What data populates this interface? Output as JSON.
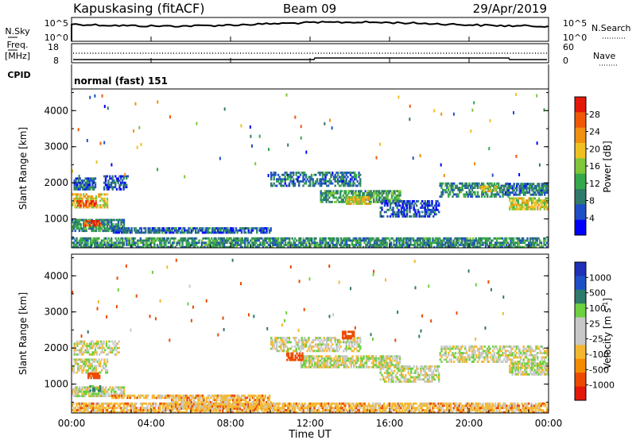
{
  "header": {
    "site": "Kapuskasing (fitACF)",
    "beam": "Beam 09",
    "date": "29/Apr/2019"
  },
  "strip_noise": {
    "left_label": "N.Sky",
    "right_label": "N.Search",
    "left_ticks": [
      "10^5",
      "10^0"
    ],
    "right_ticks": [
      "10^5",
      "10^0"
    ]
  },
  "strip_freq": {
    "left_label_top": "Freq.",
    "left_label_unit": "[MHz]",
    "left_ticks": [
      "18",
      "8"
    ],
    "right_label": "Nave",
    "right_ticks": [
      "60",
      "0"
    ]
  },
  "strip_cpid": {
    "label": "CPID",
    "mode_text": "normal (fast) 151"
  },
  "x_axis": {
    "ticks": [
      "00:00",
      "04:00",
      "08:00",
      "12:00",
      "16:00",
      "20:00",
      "00:00"
    ],
    "label": "Time UT",
    "range_hours": [
      0,
      24
    ]
  },
  "colors": {
    "power": [
      "#0000ff",
      "#1f4fc8",
      "#2f7a6a",
      "#34a84a",
      "#7fc63a",
      "#f0c020",
      "#f09010",
      "#f05808",
      "#e41808"
    ],
    "velocity": [
      "#e41808",
      "#ec4a00",
      "#f48a00",
      "#f4b830",
      "#c8c8c8",
      "#c8c8c8",
      "#6cd040",
      "#2f7a6a",
      "#1f4fc8",
      "#2030b8"
    ]
  },
  "chart_data": [
    {
      "type": "heatmap",
      "title": "",
      "xlabel": "",
      "ylabel": "Slant Range [km]",
      "xlim": [
        0,
        24
      ],
      "ylim": [
        200,
        4600
      ],
      "y_ticks": [
        "1000",
        "2000",
        "3000",
        "4000"
      ],
      "colorbar": {
        "label": "Power [dB]",
        "range": [
          0,
          32
        ],
        "ticks": [
          "4",
          "8",
          "12",
          "16",
          "20",
          "24",
          "28"
        ]
      },
      "regions": [
        {
          "t": [
            0.0,
            1.8
          ],
          "r": [
            1350,
            1750
          ],
          "value": 20
        },
        {
          "t": [
            0.2,
            1.2
          ],
          "r": [
            1400,
            1550
          ],
          "value": 27
        },
        {
          "t": [
            0.0,
            2.6
          ],
          "r": [
            700,
            1050
          ],
          "value": 10
        },
        {
          "t": [
            0.6,
            1.5
          ],
          "r": [
            850,
            1000
          ],
          "value": 28
        },
        {
          "t": [
            0.1,
            1.2
          ],
          "r": [
            1850,
            2200
          ],
          "value": 7
        },
        {
          "t": [
            1.6,
            2.8
          ],
          "r": [
            1850,
            2250
          ],
          "value": 6
        },
        {
          "t": [
            2.0,
            10.0
          ],
          "r": [
            650,
            800
          ],
          "value": 7
        },
        {
          "t": [
            0.0,
            24.0
          ],
          "r": [
            250,
            550
          ],
          "value": 10
        },
        {
          "t": [
            10.0,
            14.5
          ],
          "r": [
            1950,
            2350
          ],
          "value": 8
        },
        {
          "t": [
            12.5,
            16.5
          ],
          "r": [
            1500,
            1850
          ],
          "value": 12
        },
        {
          "t": [
            13.8,
            15.0
          ],
          "r": [
            1450,
            1650
          ],
          "value": 19
        },
        {
          "t": [
            15.5,
            18.5
          ],
          "r": [
            1100,
            1550
          ],
          "value": 6
        },
        {
          "t": [
            18.5,
            22.0
          ],
          "r": [
            1650,
            2050
          ],
          "value": 10
        },
        {
          "t": [
            20.5,
            21.4
          ],
          "r": [
            1800,
            1950
          ],
          "value": 17
        },
        {
          "t": [
            22.0,
            24.0
          ],
          "r": [
            1300,
            1650
          ],
          "value": 18
        },
        {
          "t": [
            21.8,
            24.0
          ],
          "r": [
            1700,
            2050
          ],
          "value": 8
        }
      ]
    },
    {
      "type": "heatmap",
      "title": "",
      "xlabel": "Time UT",
      "ylabel": "Slant Range [km]",
      "xlim": [
        0,
        24
      ],
      "ylim": [
        200,
        4600
      ],
      "y_ticks": [
        "1000",
        "2000",
        "3000",
        "4000"
      ],
      "colorbar": {
        "label": "Velocity [m s^-1]",
        "ticks": [
          "1000",
          "500",
          "100",
          "25",
          "-25",
          "-100",
          "-500",
          "-1000"
        ]
      },
      "regions": [
        {
          "t": [
            0.0,
            1.8
          ],
          "r": [
            1350,
            1750
          ],
          "value": 0
        },
        {
          "t": [
            0.1,
            2.4
          ],
          "r": [
            1850,
            2250
          ],
          "value": 0
        },
        {
          "t": [
            0.0,
            2.6
          ],
          "r": [
            700,
            1000
          ],
          "value": 0
        },
        {
          "t": [
            0.8,
            1.4
          ],
          "r": [
            1200,
            1350
          ],
          "value": -400
        },
        {
          "t": [
            0.9,
            1.4
          ],
          "r": [
            850,
            1000
          ],
          "value": 150
        },
        {
          "t": [
            2.0,
            10.0
          ],
          "r": [
            650,
            760
          ],
          "value": -60
        },
        {
          "t": [
            0.0,
            24.0
          ],
          "r": [
            250,
            550
          ],
          "value": -60
        },
        {
          "t": [
            5.0,
            10.0
          ],
          "r": [
            350,
            600
          ],
          "value": -60
        },
        {
          "t": [
            11.5,
            16.5
          ],
          "r": [
            1500,
            1850
          ],
          "value": 0
        },
        {
          "t": [
            10.0,
            14.5
          ],
          "r": [
            1950,
            2350
          ],
          "value": 0
        },
        {
          "t": [
            15.5,
            18.5
          ],
          "r": [
            1100,
            1550
          ],
          "value": 0
        },
        {
          "t": [
            18.5,
            24.0
          ],
          "r": [
            1650,
            2100
          ],
          "value": 0
        },
        {
          "t": [
            22.0,
            24.0
          ],
          "r": [
            1300,
            1650
          ],
          "value": 0
        },
        {
          "t": [
            13.6,
            14.2
          ],
          "r": [
            2300,
            2500
          ],
          "value": -350
        },
        {
          "t": [
            10.8,
            11.6
          ],
          "r": [
            1700,
            1900
          ],
          "value": -350
        }
      ]
    }
  ]
}
